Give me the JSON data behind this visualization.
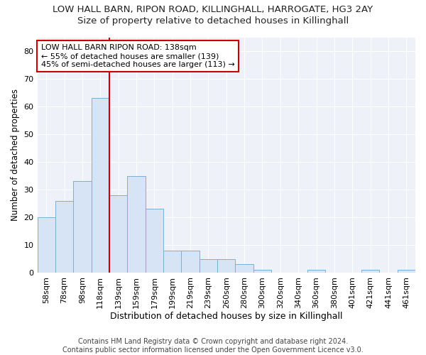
{
  "title": "LOW HALL BARN, RIPON ROAD, KILLINGHALL, HARROGATE, HG3 2AY",
  "subtitle": "Size of property relative to detached houses in Killinghall",
  "xlabel": "Distribution of detached houses by size in Killinghall",
  "ylabel": "Number of detached properties",
  "categories": [
    "58sqm",
    "78sqm",
    "98sqm",
    "118sqm",
    "139sqm",
    "159sqm",
    "179sqm",
    "199sqm",
    "219sqm",
    "239sqm",
    "260sqm",
    "280sqm",
    "300sqm",
    "320sqm",
    "340sqm",
    "360sqm",
    "380sqm",
    "401sqm",
    "421sqm",
    "441sqm",
    "461sqm"
  ],
  "values": [
    20,
    26,
    33,
    63,
    28,
    35,
    23,
    8,
    8,
    5,
    5,
    3,
    1,
    0,
    0,
    1,
    0,
    0,
    1,
    0,
    1
  ],
  "bar_color": "#d6e4f5",
  "bar_edge_color": "#7aafd4",
  "ref_line_color": "#cc0000",
  "annotation_line1": "LOW HALL BARN RIPON ROAD: 138sqm",
  "annotation_line2": "← 55% of detached houses are smaller (139)",
  "annotation_line3": "45% of semi-detached houses are larger (113) →",
  "annotation_box_color": "white",
  "annotation_box_edge_color": "#cc0000",
  "ylim": [
    0,
    85
  ],
  "yticks": [
    0,
    10,
    20,
    30,
    40,
    50,
    60,
    70,
    80
  ],
  "background_color": "#ffffff",
  "plot_bg_color": "#eef2f8",
  "grid_color": "#ffffff",
  "footer": "Contains HM Land Registry data © Crown copyright and database right 2024.\nContains public sector information licensed under the Open Government Licence v3.0.",
  "title_fontsize": 9.5,
  "subtitle_fontsize": 9.5,
  "xlabel_fontsize": 9,
  "ylabel_fontsize": 8.5,
  "tick_fontsize": 8,
  "annotation_fontsize": 8,
  "footer_fontsize": 7
}
